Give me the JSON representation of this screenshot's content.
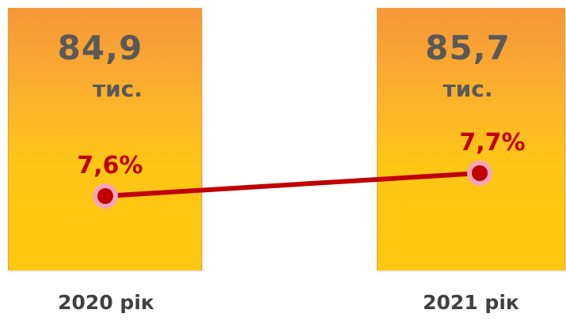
{
  "chart_data": {
    "type": "bar",
    "categories": [
      "2020 рік",
      "2021 рік"
    ],
    "series": [
      {
        "values": [
          84.9,
          85.7
        ],
        "labels": [
          "84,9",
          "85,7"
        ],
        "unit": "тис."
      },
      {
        "type": "line",
        "values": [
          7.6,
          7.7
        ],
        "labels": [
          "7,6%",
          "7,7%"
        ]
      }
    ],
    "title": "",
    "xlabel": "",
    "ylabel": "",
    "grid": false
  },
  "colors": {
    "bar_top": "#f7963a",
    "bar_bottom": "#ffc80f",
    "value_text": "#595959",
    "line": "#c00000",
    "marker_fill": "#c00000",
    "marker_ring": "#f4a6b8"
  }
}
